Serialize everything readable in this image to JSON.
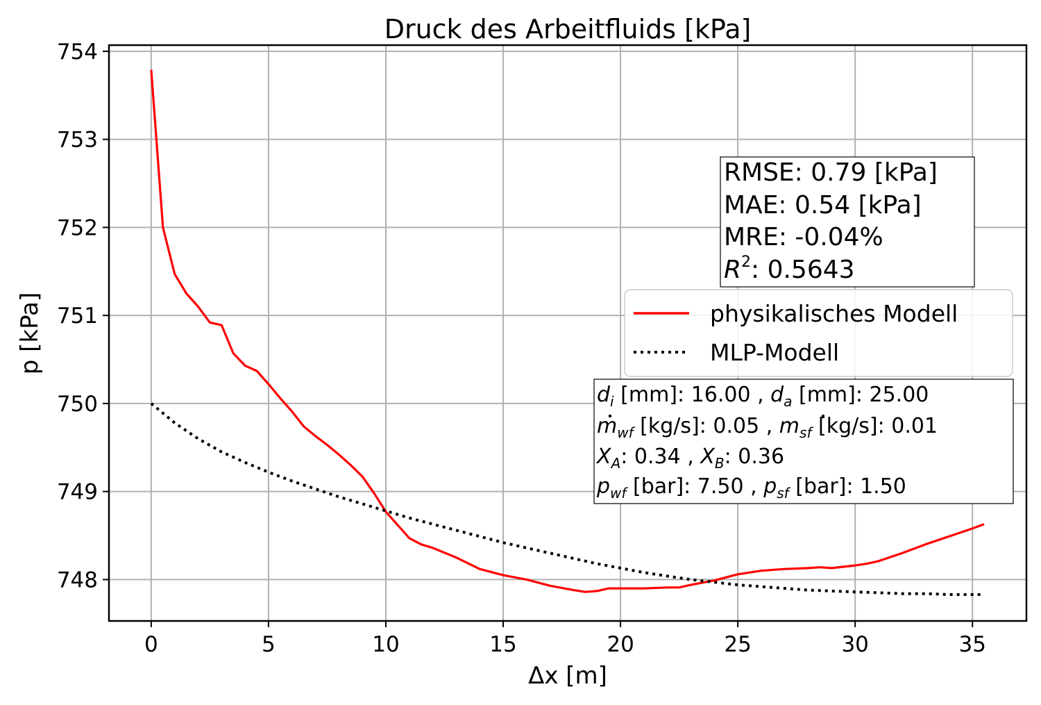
{
  "chart_data": {
    "type": "line",
    "title": "Druck des Arbeitfluids [kPa]",
    "xlabel": "Δx [m]",
    "ylabel": "p [kPa]",
    "xlim": [
      -1.8,
      37.3
    ],
    "ylim": [
      747.53,
      754.07
    ],
    "xticks": [
      0,
      5,
      10,
      15,
      20,
      25,
      30,
      35
    ],
    "yticks": [
      748,
      749,
      750,
      751,
      752,
      753,
      754
    ],
    "grid": true,
    "legend_position": "center-right",
    "series": [
      {
        "name": "physikalisches Modell",
        "color": "#ff0000",
        "style": "solid",
        "x": [
          0,
          0.5,
          1,
          1.5,
          2,
          2.5,
          3,
          3.5,
          4,
          4.5,
          5,
          5.5,
          6,
          6.5,
          7,
          7.5,
          8,
          8.5,
          9,
          9.5,
          10,
          10.5,
          11,
          11.5,
          12,
          13,
          14,
          15,
          16,
          17,
          18,
          18.5,
          19,
          19.5,
          20,
          21,
          22,
          22.5,
          23,
          24,
          25,
          26,
          27,
          28,
          28.5,
          29,
          30,
          30.5,
          31,
          32,
          33,
          34,
          35,
          35.5
        ],
        "y": [
          753.79,
          752.0,
          751.47,
          751.25,
          751.1,
          750.92,
          750.89,
          750.57,
          750.43,
          750.37,
          750.22,
          750.06,
          749.91,
          749.74,
          749.63,
          749.53,
          749.42,
          749.3,
          749.17,
          748.98,
          748.77,
          748.62,
          748.47,
          748.4,
          748.36,
          748.25,
          748.12,
          748.05,
          748.0,
          747.93,
          747.88,
          747.86,
          747.87,
          747.9,
          747.9,
          747.9,
          747.91,
          747.91,
          747.94,
          747.99,
          748.06,
          748.1,
          748.12,
          748.13,
          748.14,
          748.13,
          748.16,
          748.18,
          748.21,
          748.3,
          748.4,
          748.49,
          748.58,
          748.63
        ]
      },
      {
        "name": "MLP-Modell",
        "color": "#000000",
        "style": "dotted",
        "x": [
          0,
          1,
          2,
          3,
          4,
          5,
          6,
          7,
          8,
          9,
          10,
          11,
          12,
          13,
          14,
          15,
          16,
          17,
          18,
          19,
          20,
          21,
          22,
          23,
          24,
          25,
          26,
          27,
          28,
          29,
          30,
          31,
          32,
          33,
          34,
          35,
          35.4
        ],
        "y": [
          750.0,
          749.78,
          749.6,
          749.45,
          749.33,
          749.22,
          749.12,
          749.03,
          748.94,
          748.86,
          748.78,
          748.7,
          748.63,
          748.56,
          748.49,
          748.42,
          748.36,
          748.3,
          748.24,
          748.18,
          748.13,
          748.08,
          748.04,
          748.0,
          747.97,
          747.94,
          747.92,
          747.9,
          747.88,
          747.87,
          747.86,
          747.85,
          747.84,
          747.84,
          747.83,
          747.83,
          747.83
        ]
      }
    ],
    "stats": {
      "rmse": "RMSE: 0.79 [kPa]",
      "mae": "MAE: 0.54 [kPa]",
      "mre": "MRE: -0.04%",
      "r2_symbol": "R",
      "r2_exp": "2",
      "r2_value": ": 0.5643"
    },
    "params": {
      "di_sym": "d",
      "di_sub": "i",
      "di_text": " [mm]: 16.00 , ",
      "da_sym": "d",
      "da_sub": "a",
      "da_text": " [mm]: 25.00",
      "mwf_sym": "m",
      "mwf_sub": "wf",
      "mwf_text": " [kg/s]: 0.05 , ",
      "msf_sym": "m",
      "msf_sub": "sf",
      "msf_text": " [kg/s]: 0.01",
      "xa_sym": "X",
      "xa_sub": "A",
      "xa_text": ": 0.34 , ",
      "xb_sym": "X",
      "xb_sub": "B",
      "xb_text": ": 0.36",
      "pwf_sym": "p",
      "pwf_sub": "wf",
      "pwf_text": " [bar]: 7.50 , ",
      "psf_sym": "p",
      "psf_sub": "sf",
      "psf_text": " [bar]: 1.50"
    }
  }
}
